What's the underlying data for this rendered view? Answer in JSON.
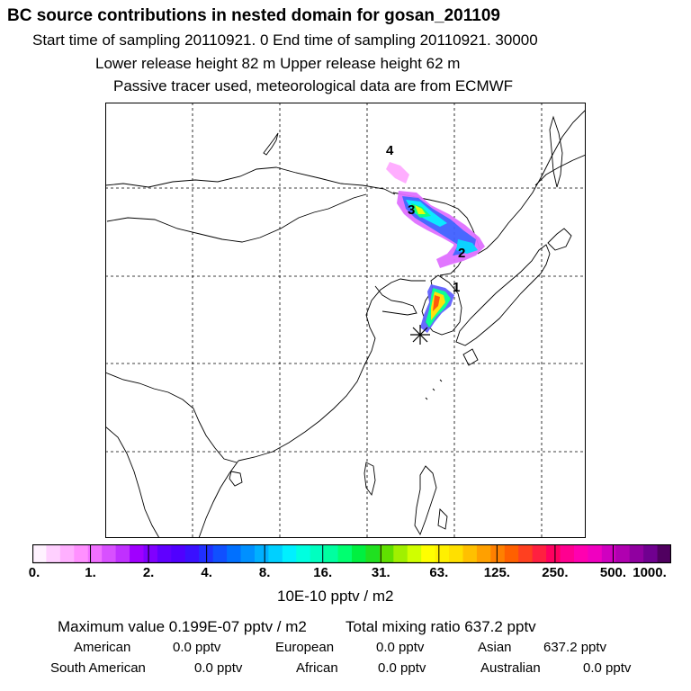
{
  "header": {
    "title": "BC  source contributions in nested domain for gosan_201109",
    "sampling_line": "Start time of sampling 20110921.     0     End time of sampling 20110921. 30000",
    "release_line": "Lower release height   82 m          Upper release height   62 m",
    "tracer_line": "Passive tracer used, meteorological data are from ECMWF"
  },
  "map": {
    "markers": [
      {
        "label": "1"
      },
      {
        "label": "2"
      },
      {
        "label": "3"
      },
      {
        "label": "4"
      }
    ],
    "receptor_icon": "asterisk-star-icon",
    "plume_colors": [
      "#ff88ff",
      "#c800ff",
      "#0040ff",
      "#00e0ff",
      "#00ff60",
      "#ffe000",
      "#ff4000"
    ]
  },
  "colorbar": {
    "tick_labels": [
      "0.",
      "1.",
      "2.",
      "4.",
      "8.",
      "16.",
      "31.",
      "63.",
      "125.",
      "250.",
      "500.",
      "1000."
    ],
    "unit": "10E-10 pptv / m2",
    "colors": [
      "#fff2ff",
      "#ffd0ff",
      "#ffb0ff",
      "#ff90ff",
      "#f070ff",
      "#d850ff",
      "#c030ff",
      "#a000ff",
      "#8000ff",
      "#6000ff",
      "#5000ff",
      "#3a10ff",
      "#2030ff",
      "#1050ff",
      "#0070ff",
      "#0090ff",
      "#00b0ff",
      "#00d0ff",
      "#00f0ff",
      "#00ffe0",
      "#00ffc0",
      "#00ffa0",
      "#00ff70",
      "#00f040",
      "#20e020",
      "#60e000",
      "#a0f000",
      "#d0ff00",
      "#ffff00",
      "#fff000",
      "#ffe000",
      "#ffc000",
      "#ffa000",
      "#ff8000",
      "#ff6000",
      "#ff4020",
      "#ff2040",
      "#ff0060",
      "#ff0090",
      "#ff00b0",
      "#f000c0",
      "#d000c0",
      "#b000b0",
      "#9000a0",
      "#700090",
      "#500060"
    ]
  },
  "stats": {
    "max_label": "Maximum value  0.199E-07 pptv / m2",
    "total_label": "Total mixing ratio      637.2 pptv",
    "regions": [
      {
        "name": "American",
        "value": "0.0 pptv"
      },
      {
        "name": "European",
        "value": "0.0 pptv"
      },
      {
        "name": "Asian",
        "value": "637.2 pptv"
      },
      {
        "name": "South American",
        "value": "0.0 pptv"
      },
      {
        "name": "African",
        "value": "0.0 pptv"
      },
      {
        "name": "Australian",
        "value": "0.0 pptv"
      }
    ]
  }
}
